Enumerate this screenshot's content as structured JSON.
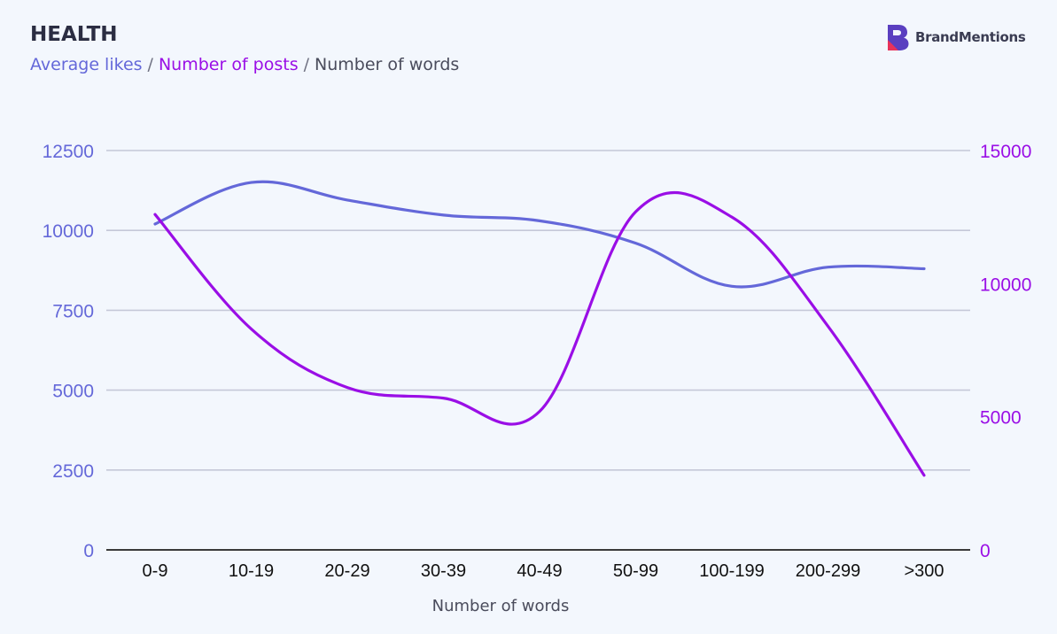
{
  "header": {
    "title": "HEALTH",
    "legend": [
      {
        "label": "Average likes",
        "color": "#6468d9"
      },
      {
        "label": "Number of posts",
        "color": "#9a0ee6"
      },
      {
        "label": "Number of words",
        "color": "#4a4c5c"
      }
    ],
    "separator": "/"
  },
  "brand": {
    "name": "BrandMentions",
    "logo_icon": "brandmentions-logo-icon"
  },
  "colors": {
    "likes": "#6468d9",
    "posts": "#9a0ee6",
    "grid": "#c5c8d8",
    "axis": "#3a3a3a"
  },
  "chart_data": {
    "type": "line",
    "title": "HEALTH",
    "xlabel": "Number of words",
    "categories": [
      "0-9",
      "10-19",
      "20-29",
      "30-39",
      "40-49",
      "50-99",
      "100-199",
      "200-299",
      ">300"
    ],
    "ylim_left": [
      0,
      12500
    ],
    "yticks_left": [
      "0",
      "2500",
      "5000",
      "7500",
      "10000",
      "12500"
    ],
    "ylim_right": [
      0,
      15000
    ],
    "yticks_right": [
      "0",
      "5000",
      "10000",
      "15000"
    ],
    "grid": true,
    "series": [
      {
        "name": "Average likes",
        "axis": "left",
        "values": [
          10200,
          11500,
          10950,
          10480,
          10300,
          9600,
          8250,
          8850,
          8800
        ]
      },
      {
        "name": "Number of posts",
        "axis": "right",
        "values": [
          12600,
          8300,
          6100,
          5700,
          5200,
          12700,
          12500,
          8400,
          2800
        ]
      }
    ]
  }
}
